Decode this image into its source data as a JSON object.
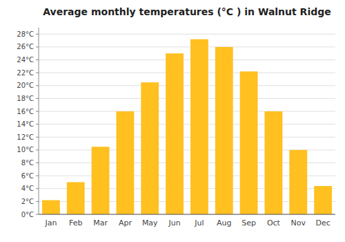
{
  "chart_data": {
    "type": "bar",
    "title": "Average monthly temperatures (°C ) in Walnut Ridge",
    "categories": [
      "Jan",
      "Feb",
      "Mar",
      "Apr",
      "May",
      "Jun",
      "Jul",
      "Aug",
      "Sep",
      "Oct",
      "Nov",
      "Dec"
    ],
    "values": [
      2.2,
      5.0,
      10.5,
      16.0,
      20.5,
      25.0,
      27.2,
      26.0,
      22.2,
      16.0,
      10.0,
      4.4
    ],
    "color": "#FFC020",
    "ylim": [
      0,
      29
    ],
    "yticks": [
      {
        "value": 0,
        "label": "0°C"
      },
      {
        "value": 2,
        "label": "2°C"
      },
      {
        "value": 4,
        "label": "4°C"
      },
      {
        "value": 6,
        "label": "6°C"
      },
      {
        "value": 8,
        "label": "8°C"
      },
      {
        "value": 10,
        "label": "10°C"
      },
      {
        "value": 12,
        "label": "12°C"
      },
      {
        "value": 14,
        "label": "14°C"
      },
      {
        "value": 16,
        "label": "16°C"
      },
      {
        "value": 18,
        "label": "18°C"
      },
      {
        "value": 20,
        "label": "20°C"
      },
      {
        "value": 22,
        "label": "22°C"
      },
      {
        "value": 24,
        "label": "24°C"
      },
      {
        "value": 26,
        "label": "26°C"
      },
      {
        "value": 28,
        "label": "28°C"
      }
    ],
    "grid": true
  }
}
